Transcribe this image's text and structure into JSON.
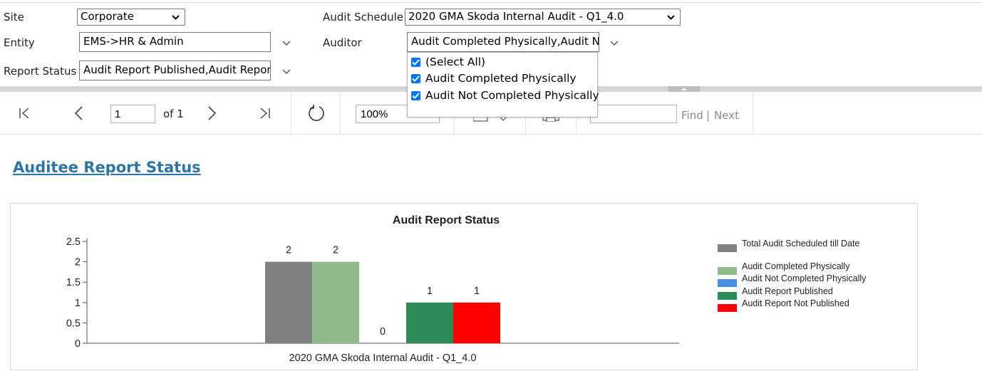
{
  "params": {
    "site": {
      "label": "Site",
      "value": "Corporate"
    },
    "entity": {
      "label": "Entity",
      "value": "EMS->HR & Admin"
    },
    "report_status": {
      "label": "Report Status",
      "value": "Audit Report Published,Audit Report Not Published"
    },
    "audit_schedule": {
      "label": "Audit Schedule",
      "value": "2020 GMA Skoda Internal Audit - Q1_4.0"
    },
    "auditor": {
      "label": "Auditor",
      "value": "Audit Completed Physically,Audit Not Completed Physically",
      "options": [
        {
          "label": "(Select All)",
          "checked": true
        },
        {
          "label": "Audit Completed Physically",
          "checked": true
        },
        {
          "label": "Audit Not Completed Physically",
          "checked": true
        }
      ]
    }
  },
  "toolbar": {
    "page": "1",
    "of_label": "of 1",
    "zoom": "100%",
    "find_label": "Find",
    "separator": "|",
    "next_label": "Next"
  },
  "report": {
    "title": "Auditee Report Status"
  },
  "colors": {
    "total": "#808080",
    "completed": "#8fbc8b",
    "not_completed": "#4a90e2",
    "published": "#2e8b57",
    "not_published": "#ff0000"
  },
  "chart_data": {
    "type": "bar",
    "title": "Audit Report Status",
    "categories": [
      "2020 GMA Skoda Internal Audit - Q1_4.0"
    ],
    "ylim": [
      0,
      2.5
    ],
    "yticks": [
      "0",
      "0.5",
      "1",
      "1.5",
      "2",
      "2.5"
    ],
    "legend_position": "right",
    "series": [
      {
        "name": "Total Audit Scheduled till Date",
        "values": [
          2
        ],
        "color": "#808080"
      },
      {
        "name": "Audit Completed Physically",
        "values": [
          2
        ],
        "color": "#8fbc8b"
      },
      {
        "name": "Audit Not Completed Physically",
        "values": [
          0
        ],
        "color": "#4a90e2"
      },
      {
        "name": "Audit Report Published",
        "values": [
          1
        ],
        "color": "#2e8b57"
      },
      {
        "name": "Audit Report Not Published",
        "values": [
          1
        ],
        "color": "#ff0000"
      }
    ]
  }
}
